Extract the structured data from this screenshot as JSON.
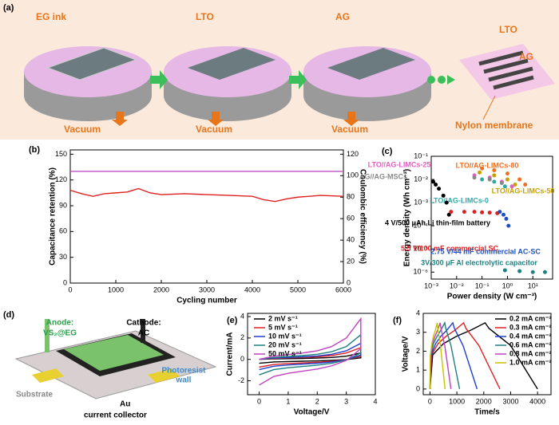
{
  "panel_labels": [
    "(a)",
    "(b)",
    "(c)",
    "(d)",
    "(e)",
    "(f)"
  ],
  "diagram_a": {
    "stages": [
      "EG ink",
      "LTO",
      "AG"
    ],
    "vacuum": [
      "Vacuum",
      "Vacuum",
      "Vacuum"
    ],
    "device_labels": [
      "LTO",
      "AG"
    ],
    "membrane": "Nylon membrane"
  },
  "diagram_d": {
    "anode": [
      "Anode:",
      "VS₂@EG"
    ],
    "cathode": [
      "Cathode:",
      "AC"
    ],
    "wall": [
      "Photoresist",
      "wall"
    ],
    "substrate": "Substrate",
    "collector": [
      "Au",
      "current collector"
    ]
  },
  "chart_data": [
    {
      "type": "line",
      "xlabel": "Cycling number",
      "ylabel": "Capacitance retention (%)",
      "y2label": "Coulombic efficiency (%)",
      "x": [
        0,
        250,
        500,
        750,
        1000,
        1250,
        1500,
        1750,
        2000,
        2500,
        3000,
        3500,
        4000,
        4250,
        4500,
        4750,
        5000,
        5250,
        5500,
        6000
      ],
      "xlim": [
        0,
        6000
      ],
      "xticks": [
        0,
        1000,
        2000,
        3000,
        4000,
        5000,
        6000
      ],
      "ylim": [
        0,
        155
      ],
      "yticks": [
        0,
        30,
        60,
        90,
        120,
        150
      ],
      "y2lim": [
        0,
        124
      ],
      "y2ticks": [
        0,
        20,
        40,
        60,
        80,
        100,
        120
      ],
      "series": [
        {
          "name": "Capacitance retention",
          "color": "#e02020",
          "values": [
            108,
            104,
            101,
            104,
            105,
            106,
            110,
            105,
            103,
            104,
            103,
            102,
            101,
            97,
            95,
            98,
            100,
            101,
            102,
            101
          ]
        },
        {
          "name": "Coulombic efficiency",
          "color": "#c050c0",
          "axis": "y2",
          "values": [
            104,
            104,
            104,
            104,
            104,
            104,
            104,
            104,
            104,
            104,
            104,
            104,
            104,
            104,
            104,
            104,
            104,
            104,
            104,
            104
          ]
        }
      ]
    },
    {
      "type": "scatter",
      "log_x": true,
      "log_y": true,
      "xlabel": "Power density (W cm⁻³)",
      "ylabel": "Energy density (Wh cm⁻³)",
      "xlim": [
        0.001,
        60
      ],
      "xticks": [
        {
          "value": 0.001,
          "label": "10⁻³"
        },
        {
          "value": 0.01,
          "label": "10⁻²"
        },
        {
          "value": 0.1,
          "label": "10⁻¹"
        },
        {
          "value": 1,
          "label": "10⁰"
        },
        {
          "value": 10,
          "label": "10¹"
        }
      ],
      "ylim": [
        5e-07,
        0.1
      ],
      "yticks": [
        {
          "value": 1e-06,
          "label": "10⁻⁶"
        },
        {
          "value": 1e-05,
          "label": "10⁻⁵"
        },
        {
          "value": 0.0001,
          "label": "10⁻⁴"
        },
        {
          "value": 0.001,
          "label": "10⁻³"
        },
        {
          "value": 0.01,
          "label": "10⁻²"
        },
        {
          "value": 0.1,
          "label": "10⁻¹"
        }
      ],
      "series": [
        {
          "name": "LTO//AG-LIMCs-80",
          "color": "#f07020",
          "x": [
            0.1,
            0.3,
            1,
            3,
            5
          ],
          "values": [
            0.03,
            0.025,
            0.018,
            0.01,
            0.006
          ]
        },
        {
          "name": "LTO//AG-LIMCs-50",
          "color": "#c8a000",
          "x": [
            0.08,
            0.3,
            1,
            2
          ],
          "values": [
            0.02,
            0.015,
            0.01,
            0.006
          ]
        },
        {
          "name": "LTO//AG-LIMCs-25",
          "color": "#e060c0",
          "x": [
            0.05,
            0.2,
            0.6,
            1.5
          ],
          "values": [
            0.015,
            0.012,
            0.008,
            0.005
          ]
        },
        {
          "name": "LTO//AG-LIMCs-0",
          "color": "#30a8a8",
          "x": [
            0.1,
            0.3,
            0.8
          ],
          "values": [
            0.01,
            0.008,
            0.005
          ]
        },
        {
          "name": "AG//AG-MSCs",
          "color": "#888888",
          "x": [
            0.05,
            0.2,
            0.6
          ],
          "values": [
            0.012,
            0.01,
            0.007
          ]
        },
        {
          "name": "4 V/500 μAh Li thin-film battery",
          "color": "#000000",
          "x": [
            0.0012,
            0.0015,
            0.002,
            0.003,
            0.004,
            0.005
          ],
          "values": [
            0.008,
            0.006,
            0.004,
            0.002,
            0.001,
            0.0003
          ]
        },
        {
          "name": "5.5 V/100 mF commercial SC",
          "color": "#e02020",
          "x": [
            0.006,
            0.02,
            0.05,
            0.1,
            0.2,
            0.4
          ],
          "values": [
            0.0004,
            0.0004,
            0.0004,
            0.00038,
            0.00037,
            0.00035
          ]
        },
        {
          "name": "2.75 V/44 mF commercial AC-SC",
          "color": "#2050c0",
          "x": [
            0.5,
            0.7,
            0.9,
            1.1
          ],
          "values": [
            0.0004,
            0.0003,
            0.0002,
            0.0001
          ]
        },
        {
          "name": "3V/300 μF Al electrolytic capacitor",
          "color": "#208080",
          "x": [
            0.8,
            3,
            10,
            30
          ],
          "values": [
            1.2e-06,
            1.1e-06,
            1e-06,
            1e-06
          ]
        }
      ]
    },
    {
      "type": "line",
      "xlabel": "Voltage/V",
      "ylabel": "Current/mA",
      "x": [
        0,
        0.5,
        1,
        1.5,
        2,
        2.5,
        3,
        3.5,
        3.5,
        3,
        2.5,
        2,
        1.5,
        1,
        0.5,
        0
      ],
      "xlim": [
        -0.4,
        4
      ],
      "xticks": [
        0,
        1,
        2,
        3,
        4
      ],
      "ylim": [
        -3.3,
        4.3
      ],
      "yticks": [
        -2,
        0,
        2,
        4
      ],
      "series": [
        {
          "name": "2 mV s⁻¹",
          "color": "#000000",
          "values": [
            0,
            0.05,
            0.07,
            0.09,
            0.12,
            0.18,
            0.3,
            0.6,
            0.15,
            -0.02,
            -0.09,
            -0.14,
            -0.17,
            -0.2,
            -0.24,
            -0.36
          ]
        },
        {
          "name": "5 mV s⁻¹",
          "color": "#e02020",
          "values": [
            0,
            0.09,
            0.14,
            0.18,
            0.24,
            0.36,
            0.6,
            1.1,
            0.3,
            -0.03,
            -0.18,
            -0.27,
            -0.33,
            -0.39,
            -0.48,
            -0.72
          ]
        },
        {
          "name": "10 mV s⁻¹",
          "color": "#2040d0",
          "values": [
            0,
            0.12,
            0.18,
            0.24,
            0.32,
            0.48,
            0.8,
            1.5,
            0.4,
            -0.04,
            -0.24,
            -0.36,
            -0.44,
            -0.52,
            -0.64,
            -0.96
          ]
        },
        {
          "name": "20 mV s⁻¹",
          "color": "#208080",
          "values": [
            0,
            0.18,
            0.27,
            0.36,
            0.48,
            0.72,
            1.2,
            2.3,
            0.6,
            -0.06,
            -0.36,
            -0.54,
            -0.66,
            -0.78,
            -0.96,
            -1.44
          ]
        },
        {
          "name": "50 mV s⁻¹",
          "color": "#c040c0",
          "values": [
            0,
            0.3,
            0.45,
            0.6,
            0.8,
            1.2,
            2,
            3.8,
            1,
            -0.1,
            -0.6,
            -0.9,
            -1.1,
            -1.3,
            -1.6,
            -2.4
          ]
        }
      ]
    },
    {
      "type": "line",
      "xlabel": "Time/s",
      "ylabel": "Voltage/V",
      "xlim": [
        -250,
        4500
      ],
      "xticks": [
        0,
        1000,
        2000,
        3000,
        4000
      ],
      "ylim": [
        -0.3,
        4
      ],
      "yticks": [
        0,
        1,
        2,
        3,
        4
      ],
      "series": [
        {
          "name": "0.2 mA cm⁻²",
          "color": "#000000",
          "x": [
            0,
            100,
            500,
            1000,
            1500,
            2050,
            2200,
            3000,
            4000
          ],
          "values": [
            0,
            1.8,
            2.4,
            2.8,
            3.1,
            3.5,
            3.2,
            2.3,
            0
          ]
        },
        {
          "name": "0.3 mA cm⁻²",
          "color": "#e02020",
          "x": [
            0,
            60,
            300,
            610,
            920,
            1250,
            1340,
            1820,
            2600
          ],
          "values": [
            0,
            1.8,
            2.4,
            2.8,
            3.1,
            3.5,
            3.2,
            2.3,
            0
          ]
        },
        {
          "name": "0.4 mA cm⁻²",
          "color": "#2040d0",
          "x": [
            0,
            40,
            210,
            410,
            620,
            850,
            910,
            1230,
            1750
          ],
          "values": [
            0,
            1.8,
            2.4,
            2.8,
            3.1,
            3.5,
            3.2,
            2.3,
            0
          ]
        },
        {
          "name": "0.6 mA cm⁻²",
          "color": "#208080",
          "x": [
            0,
            30,
            130,
            270,
            400,
            550,
            590,
            780,
            1100
          ],
          "values": [
            0,
            1.8,
            2.4,
            2.8,
            3.1,
            3.5,
            3.2,
            2.3,
            0
          ]
        },
        {
          "name": "0.8 mA cm⁻²",
          "color": "#c040c0",
          "x": [
            0,
            20,
            90,
            190,
            280,
            380,
            410,
            550,
            780
          ],
          "values": [
            0,
            1.8,
            2.4,
            2.8,
            3.1,
            3.5,
            3.2,
            2.3,
            0
          ]
        },
        {
          "name": "1.0 mA cm⁻²",
          "color": "#c8c000",
          "x": [
            0,
            15,
            70,
            130,
            200,
            270,
            290,
            390,
            560
          ],
          "values": [
            0,
            1.8,
            2.4,
            2.8,
            3.1,
            3.5,
            3.2,
            2.3,
            0
          ]
        }
      ]
    }
  ]
}
